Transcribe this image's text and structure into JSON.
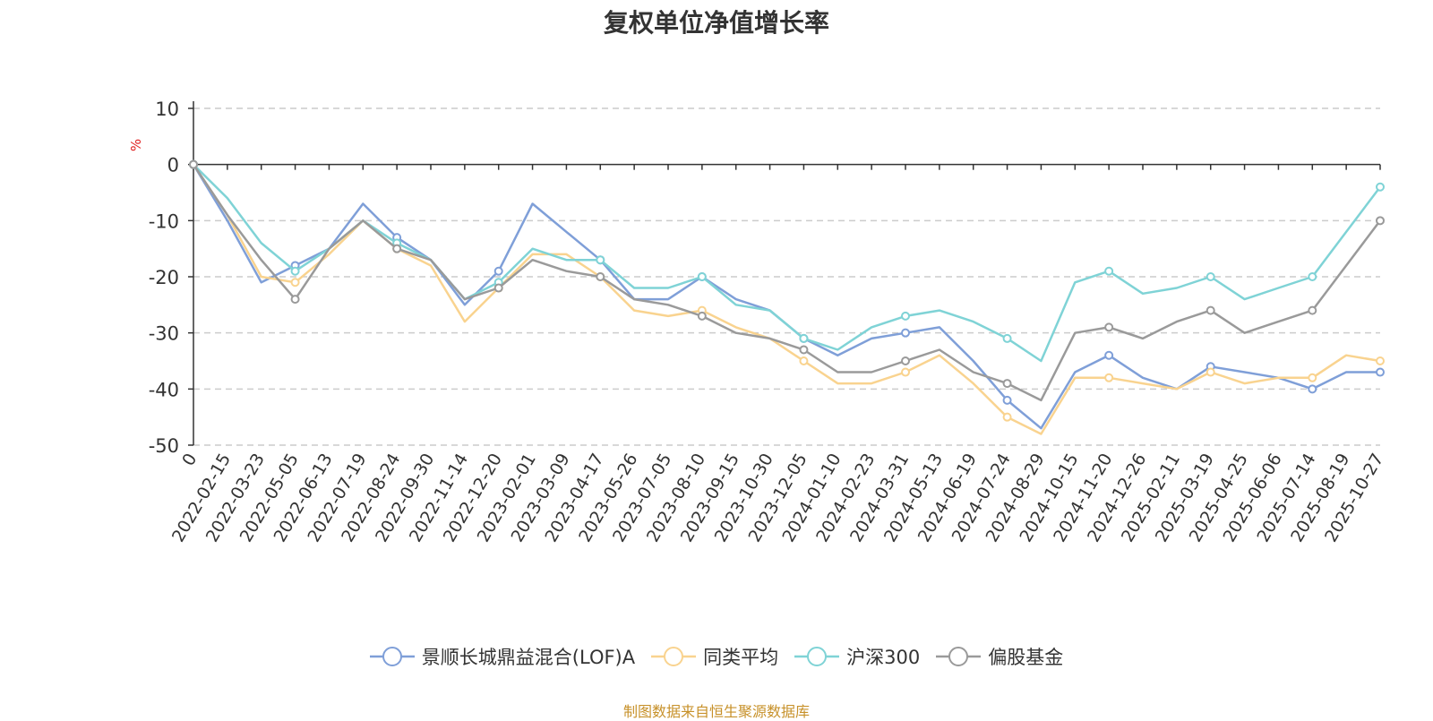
{
  "title": "复权单位净值增长率",
  "source": "制图数据来自恒生聚源数据库",
  "chart_data": {
    "type": "line",
    "title": "复权单位净值增长率",
    "ylabel": "%",
    "ylim": [
      -50,
      10
    ],
    "yticks": [
      "10",
      "0",
      "-10",
      "-20",
      "-30",
      "-40",
      "-50"
    ],
    "grid": "horizontal dashed",
    "legend_position": "bottom",
    "x": [
      "0",
      "2022-02-15",
      "2022-03-23",
      "2022-05-05",
      "2022-06-13",
      "2022-07-19",
      "2022-08-24",
      "2022-09-30",
      "2022-11-14",
      "2022-12-20",
      "2023-02-01",
      "2023-03-09",
      "2023-04-17",
      "2023-05-26",
      "2023-07-05",
      "2023-08-10",
      "2023-09-15",
      "2023-10-30",
      "2023-12-05",
      "2024-01-10",
      "2024-02-23",
      "2024-03-31",
      "2024-05-13",
      "2024-06-19",
      "2024-07-24",
      "2024-08-29",
      "2024-10-15",
      "2024-11-20",
      "2024-12-26",
      "2025-02-11",
      "2025-03-19",
      "2025-04-25",
      "2025-06-06",
      "2025-07-14",
      "2025-08-19",
      "2025-10-27"
    ],
    "series": [
      {
        "name": "景顺长城鼎益混合(LOF)A",
        "color": "#7f9fd8",
        "values": [
          0,
          -10,
          -21,
          -18,
          -15,
          -7,
          -13,
          -17,
          -25,
          -19,
          -7,
          -12,
          -17,
          -24,
          -24,
          -20,
          -24,
          -26,
          -31,
          -34,
          -31,
          -30,
          -29,
          -35,
          -42,
          -47,
          -37,
          -34,
          -38,
          -40,
          -36,
          -37,
          -38,
          -40,
          -37,
          -37
        ]
      },
      {
        "name": "同类平均",
        "color": "#f9d38f",
        "values": [
          0,
          -9,
          -20,
          -21,
          -16,
          -10,
          -15,
          -18,
          -28,
          -22,
          -16,
          -16,
          -20,
          -26,
          -27,
          -26,
          -29,
          -31,
          -35,
          -39,
          -39,
          -37,
          -34,
          -39,
          -45,
          -48,
          -38,
          -38,
          -39,
          -40,
          -37,
          -39,
          -38,
          -38,
          -34,
          -35
        ]
      },
      {
        "name": "沪深300",
        "color": "#7fd3d6",
        "values": [
          0,
          -6,
          -14,
          -19,
          -15,
          -10,
          -14,
          -17,
          -24,
          -21,
          -15,
          -17,
          -17,
          -22,
          -22,
          -20,
          -25,
          -26,
          -31,
          -33,
          -29,
          -27,
          -26,
          -28,
          -31,
          -35,
          -21,
          -19,
          -23,
          -22,
          -20,
          -24,
          -22,
          -20,
          -12,
          -4
        ]
      },
      {
        "name": "偏股基金",
        "color": "#9a9a9a",
        "values": [
          0,
          -9,
          -17,
          -24,
          -15,
          -10,
          -15,
          -17,
          -24,
          -22,
          -17,
          -19,
          -20,
          -24,
          -25,
          -27,
          -30,
          -31,
          -33,
          -37,
          -37,
          -35,
          -33,
          -37,
          -39,
          -42,
          -30,
          -29,
          -31,
          -28,
          -26,
          -30,
          -28,
          -26,
          -18,
          -10
        ]
      }
    ]
  }
}
